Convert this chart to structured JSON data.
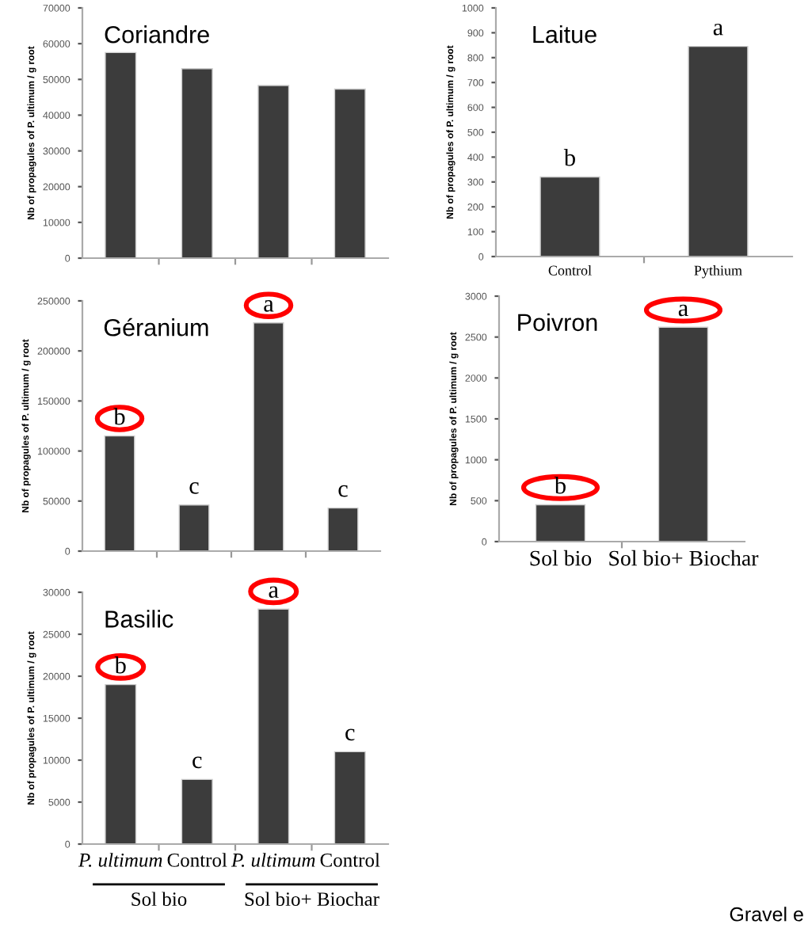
{
  "chart_data": [
    {
      "type": "bar",
      "title": "Coriandre",
      "ylabel": "Nb of propagules of P. ultimum / g root",
      "categories": [
        null,
        null,
        null,
        null
      ],
      "values": [
        57500,
        53000,
        48300,
        47300
      ],
      "color": "#3c3c3c",
      "ylim": [
        0,
        70000
      ],
      "yticks": [
        0,
        10000,
        20000,
        30000,
        40000,
        50000,
        60000,
        70000
      ],
      "grid": false
    },
    {
      "type": "bar",
      "title": "Laitue",
      "ylabel": "Nb of propagules of P. ultimum / g root",
      "categories": [
        "Control",
        "Pythium"
      ],
      "values": [
        320,
        845
      ],
      "color": "#3c3c3c",
      "ylim": [
        0,
        1000
      ],
      "yticks": [
        0,
        100,
        200,
        300,
        400,
        500,
        600,
        700,
        800,
        900,
        1000
      ],
      "annotations": [
        "b",
        "a"
      ],
      "grid": false
    },
    {
      "type": "bar",
      "title": "Géranium",
      "ylabel": "Nb of propagules of P. ultimum / g root",
      "categories": [
        null,
        null,
        null,
        null
      ],
      "values": [
        115000,
        46000,
        228000,
        43000
      ],
      "color": "#3c3c3c",
      "ylim": [
        0,
        250000
      ],
      "yticks": [
        0,
        50000,
        100000,
        150000,
        200000,
        250000
      ],
      "annotations": [
        "b",
        "c",
        "a",
        "c"
      ],
      "grid": false
    },
    {
      "type": "bar",
      "title": "Poivron",
      "ylabel": "Nb of propagules of P. ultimum / g root",
      "categories": [
        "Sol bio",
        "Sol bio+ Biochar"
      ],
      "values": [
        450,
        2620
      ],
      "color": "#3c3c3c",
      "ylim": [
        0,
        3000
      ],
      "yticks": [
        0,
        500,
        1000,
        1500,
        2000,
        2500,
        3000
      ],
      "annotations": [
        "b",
        "a"
      ],
      "grid": false
    },
    {
      "type": "bar",
      "title": "Basilic",
      "ylabel": "Nb of propagules of P. ultimum / g root",
      "categories": [
        "P. ultimum",
        "Control",
        "P. ultimum",
        "Control"
      ],
      "values": [
        19000,
        7700,
        28000,
        11000
      ],
      "color": "#3c3c3c",
      "ylim": [
        0,
        30000
      ],
      "yticks": [
        0,
        5000,
        10000,
        15000,
        20000,
        25000,
        30000
      ],
      "annotations": [
        "b",
        "c",
        "a",
        "c",
        "Sol bio",
        "Sol bio+ Biochar",
        "Gravel e"
      ],
      "grid": false
    }
  ]
}
